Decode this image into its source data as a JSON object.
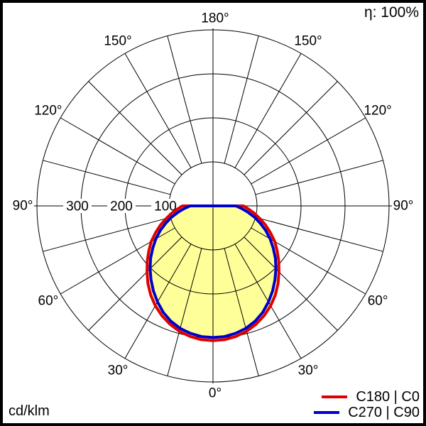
{
  "header": {
    "efficiency_label": "η: 100%"
  },
  "footer": {
    "unit_label": "cd/klm"
  },
  "chart_data": {
    "type": "polar_intensity_distribution",
    "units": "cd/klm",
    "efficiency": "η: 100%",
    "angle_tick_step_deg": 15,
    "angle_labels": [
      {
        "deg": 0,
        "label": "0°"
      },
      {
        "deg": 30,
        "label": "30°"
      },
      {
        "deg": 60,
        "label": "60°"
      },
      {
        "deg": 90,
        "label": "90°"
      },
      {
        "deg": 120,
        "label": "120°"
      },
      {
        "deg": 150,
        "label": "150°"
      },
      {
        "deg": 180,
        "label": "180°"
      }
    ],
    "radial_ticks": [
      100,
      200,
      300,
      400
    ],
    "radial_tick_labels": [
      {
        "value": 300,
        "label": "300"
      },
      {
        "value": 200,
        "label": "200"
      },
      {
        "value": 100,
        "label": "100"
      }
    ],
    "radial_max": 400,
    "gamma_deg": [
      0,
      5,
      10,
      15,
      20,
      25,
      30,
      35,
      40,
      45,
      50,
      55,
      60,
      65,
      70,
      75,
      80,
      85,
      90
    ],
    "series": [
      {
        "name": "C180 | C0",
        "color": "#e00000",
        "values": [
          306,
          305,
          301,
          295,
          286,
          275,
          262,
          247,
          230,
          212,
          195,
          178,
          162,
          144,
          127,
          110,
          95,
          81,
          69
        ]
      },
      {
        "name": "C270 | C90",
        "color": "#0000cd",
        "values": [
          299,
          298,
          294,
          288,
          279,
          267,
          252,
          236,
          219,
          202,
          185,
          167,
          150,
          132,
          114,
          97,
          80,
          65,
          52
        ]
      }
    ],
    "fill_color": "#ffff99",
    "grid_color": "#000000",
    "symmetric": true,
    "zero_direction": "down"
  }
}
